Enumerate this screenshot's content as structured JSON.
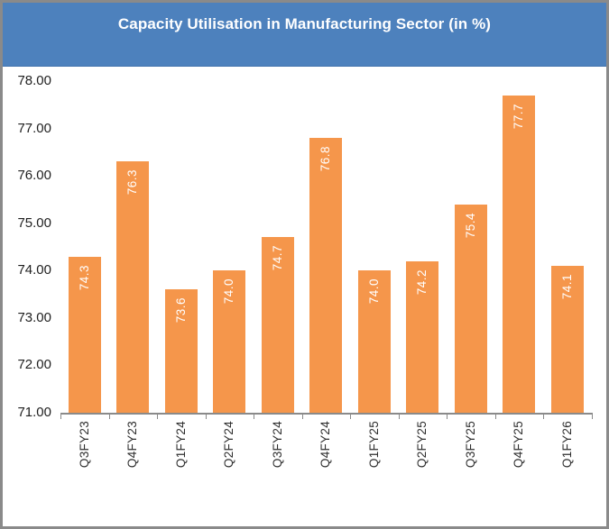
{
  "chart_data": {
    "type": "bar",
    "title": "Capacity Utilisation in Manufacturing Sector (in %)",
    "categories": [
      "Q3FY23",
      "Q4FY23",
      "Q1FY24",
      "Q2FY24",
      "Q3FY24",
      "Q4FY24",
      "Q1FY25",
      "Q2FY25",
      "Q3FY25",
      "Q4FY25",
      "Q1FY26"
    ],
    "values": [
      74.3,
      76.3,
      73.6,
      74.0,
      74.7,
      76.8,
      74.0,
      74.2,
      75.4,
      77.7,
      74.1
    ],
    "value_labels": [
      "74.3",
      "76.3",
      "73.6",
      "74.0",
      "74.7",
      "76.8",
      "74.0",
      "74.2",
      "75.4",
      "77.7",
      "74.1"
    ],
    "ytick_values": [
      78,
      77,
      76,
      75,
      74,
      73,
      72,
      71
    ],
    "ytick_labels": [
      "78.00",
      "77.00",
      "76.00",
      "75.00",
      "74.00",
      "73.00",
      "72.00",
      "71.00"
    ],
    "ylim": [
      71,
      78
    ],
    "xlabel": "",
    "ylabel": "",
    "grid": false,
    "legend": false,
    "data_label_position": "inside-end-rotated",
    "x_label_rotation_deg": 90,
    "colors": {
      "bar_fill": "#F5964B",
      "bar_label_text": "#FFFFFF",
      "title_background": "#4D81BD",
      "title_text": "#FFFFFF",
      "axis_line": "#8A8A8A",
      "frame_border": "#8A8A8A",
      "tick_text": "#1F1F1F",
      "background": "#FFFFFF"
    }
  }
}
